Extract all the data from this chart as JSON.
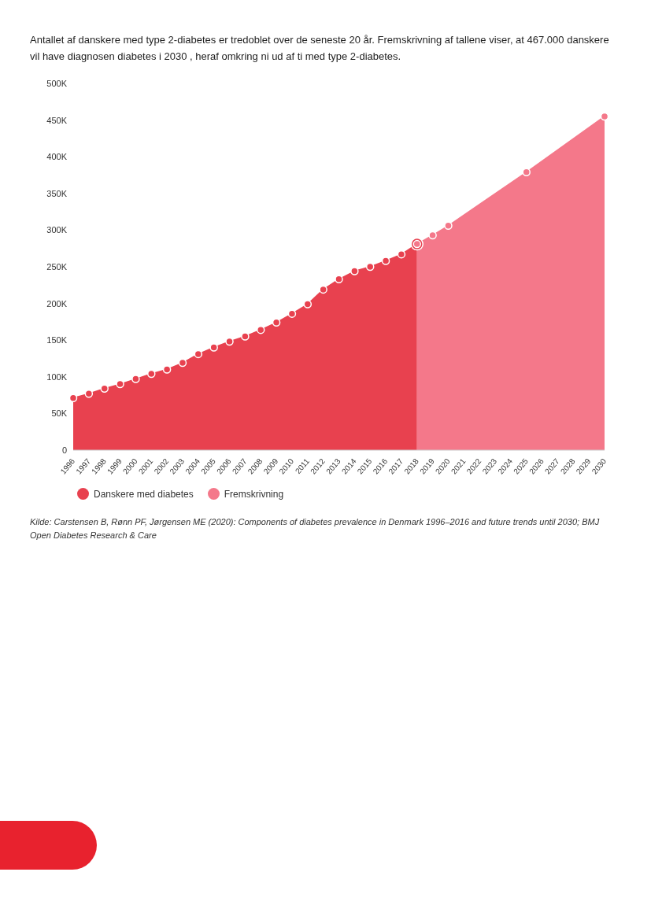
{
  "chart_data": {
    "type": "area",
    "title": "Antallet af danskere med type 2-diabetes er tredoblet over de seneste 20 år. Fremskrivning af tallene viser, at 467.000 danskere vil have diagnosen diabetes i 2030 , heraf omkring ni ud af ti med type 2-diabetes.",
    "categories": [
      "1996",
      "1997",
      "1998",
      "1999",
      "2000",
      "2001",
      "2002",
      "2003",
      "2004",
      "2005",
      "2006",
      "2007",
      "2008",
      "2009",
      "2010",
      "2011",
      "2012",
      "2013",
      "2014",
      "2015",
      "2016",
      "2017",
      "2018",
      "2019",
      "2020",
      "2021",
      "2022",
      "2023",
      "2024",
      "2025",
      "2026",
      "2027",
      "2028",
      "2029",
      "2030"
    ],
    "series": [
      {
        "name": "Danskere med diabetes",
        "color": "#e8414f",
        "values": [
          71000,
          77000,
          84000,
          90000,
          97000,
          104000,
          110000,
          119000,
          131000,
          140000,
          148000,
          155000,
          164000,
          174000,
          186000,
          199000,
          219000,
          233000,
          244000,
          250000,
          258000,
          267000,
          281000,
          null,
          null,
          null,
          null,
          null,
          null,
          null,
          null,
          null,
          null,
          null,
          null
        ]
      },
      {
        "name": "Fremskrivning",
        "color": "#f4788a",
        "values": [
          null,
          null,
          null,
          null,
          null,
          null,
          null,
          null,
          null,
          null,
          null,
          null,
          null,
          null,
          null,
          null,
          null,
          null,
          null,
          null,
          null,
          null,
          281000,
          293000,
          306000,
          null,
          null,
          null,
          null,
          379000,
          null,
          null,
          null,
          null,
          455000
        ]
      }
    ],
    "ylim": [
      0,
      500000
    ],
    "yticks": [
      {
        "value": 0,
        "label": "0"
      },
      {
        "value": 50000,
        "label": "50K"
      },
      {
        "value": 100000,
        "label": "100K"
      },
      {
        "value": 150000,
        "label": "150K"
      },
      {
        "value": 200000,
        "label": "200K"
      },
      {
        "value": 250000,
        "label": "250K"
      },
      {
        "value": 300000,
        "label": "300K"
      },
      {
        "value": 350000,
        "label": "350K"
      },
      {
        "value": 400000,
        "label": "400K"
      },
      {
        "value": 450000,
        "label": "450K"
      },
      {
        "value": 500000,
        "label": "500K"
      }
    ],
    "grid": false,
    "legend": "bottom",
    "marker": "circle",
    "annotations": [
      "Kilde: Carstensen B, Rønn PF, Jørgensen ME (2020): Components of diabetes prevalence in Denmark 1996–2016 and future trends until 2030; BMJ Open Diabetes Research & Care"
    ]
  }
}
